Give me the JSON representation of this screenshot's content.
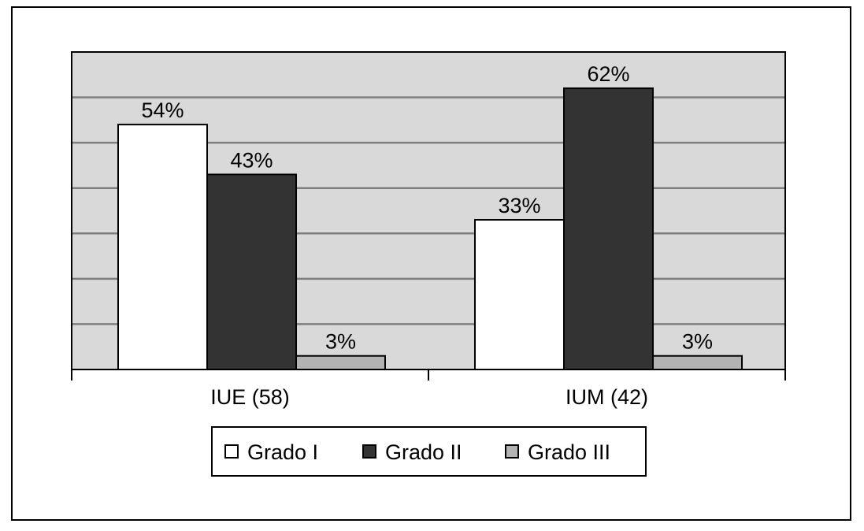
{
  "chart_data": {
    "type": "bar",
    "categories": [
      "IUE (58)",
      "IUM (42)"
    ],
    "series": [
      {
        "name": "Grado I",
        "values": [
          54,
          33
        ],
        "labels": [
          "54%",
          "33%"
        ],
        "color": "#ffffff"
      },
      {
        "name": "Grado II",
        "values": [
          43,
          62
        ],
        "labels": [
          "43%",
          "62%"
        ],
        "color": "#333333"
      },
      {
        "name": "Grado III",
        "values": [
          3,
          3
        ],
        "labels": [
          "3%",
          "3%"
        ],
        "color": "#b3b3b3"
      }
    ],
    "ylim": [
      0,
      70
    ],
    "grid": true,
    "plot_background": "#d9d9d9",
    "legend_position": "bottom",
    "title": "",
    "xlabel": "",
    "ylabel": ""
  }
}
